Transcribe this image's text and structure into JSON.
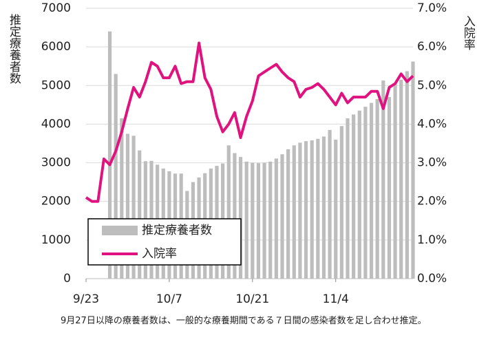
{
  "chart_data": {
    "type": "bar",
    "y_label": "推定療養者数",
    "y2_label": "入院率",
    "categories": [
      "9/23",
      null,
      null,
      null,
      null,
      null,
      null,
      null,
      null,
      null,
      null,
      null,
      null,
      null,
      "10/7",
      null,
      null,
      null,
      null,
      null,
      null,
      null,
      null,
      null,
      null,
      null,
      null,
      null,
      "10/21",
      null,
      null,
      null,
      null,
      null,
      null,
      null,
      null,
      null,
      null,
      null,
      null,
      null,
      "11/4",
      null,
      null,
      null,
      null,
      null,
      null,
      null,
      null,
      null,
      null,
      null,
      null,
      null
    ],
    "series": [
      {
        "name": "推定療養者数",
        "color": "#bdbdbd",
        "type": "bar",
        "values": [
          null,
          null,
          null,
          null,
          6400,
          5300,
          4150,
          3750,
          3700,
          3320,
          3040,
          3050,
          2950,
          2850,
          2780,
          2720,
          2720,
          2270,
          2500,
          2620,
          2730,
          2850,
          2920,
          2980,
          3450,
          3250,
          3150,
          3030,
          3000,
          2990,
          3000,
          3030,
          3110,
          3220,
          3350,
          3450,
          3520,
          3560,
          3580,
          3620,
          3680,
          3850,
          3600,
          3950,
          4150,
          4250,
          4350,
          4450,
          4550,
          4650,
          5130,
          4700,
          5050,
          5150,
          5370,
          5620
        ]
      },
      {
        "name": "入院率",
        "color": "#e0127f",
        "type": "line",
        "axis": "y2",
        "values": [
          2.1,
          2.0,
          2.0,
          3.1,
          2.95,
          3.3,
          3.8,
          4.4,
          4.95,
          4.7,
          5.1,
          5.6,
          5.5,
          5.2,
          5.2,
          5.5,
          5.05,
          5.1,
          5.1,
          6.1,
          5.2,
          4.9,
          4.2,
          3.8,
          4.0,
          4.3,
          3.65,
          4.2,
          4.6,
          5.25,
          5.35,
          5.45,
          5.55,
          5.35,
          5.2,
          5.1,
          4.7,
          4.9,
          4.95,
          5.05,
          4.9,
          4.7,
          4.5,
          4.8,
          4.55,
          4.7,
          4.7,
          4.7,
          4.85,
          4.85,
          4.4,
          4.95,
          5.05,
          5.3,
          5.1,
          5.25
        ]
      }
    ],
    "ylim": [
      0,
      7000
    ],
    "yticks": [
      0,
      1000,
      2000,
      3000,
      4000,
      5000,
      6000,
      7000
    ],
    "y2lim": [
      0,
      7
    ],
    "y2ticks": [
      {
        "value": 0,
        "label": "0.0%"
      },
      {
        "value": 1,
        "label": "1.0%"
      },
      {
        "value": 2,
        "label": "2.0%"
      },
      {
        "value": 3,
        "label": "3.0%"
      },
      {
        "value": 4,
        "label": "4.0%"
      },
      {
        "value": 5,
        "label": "5.0%"
      },
      {
        "value": 6,
        "label": "6.0%"
      },
      {
        "value": 7,
        "label": "7.0%"
      }
    ],
    "grid": true,
    "legend": "bottom-left",
    "note": "9月27日以降の療養者数は、一般的な療養期間である７日間の感染者数を足し合わせ推定。"
  }
}
